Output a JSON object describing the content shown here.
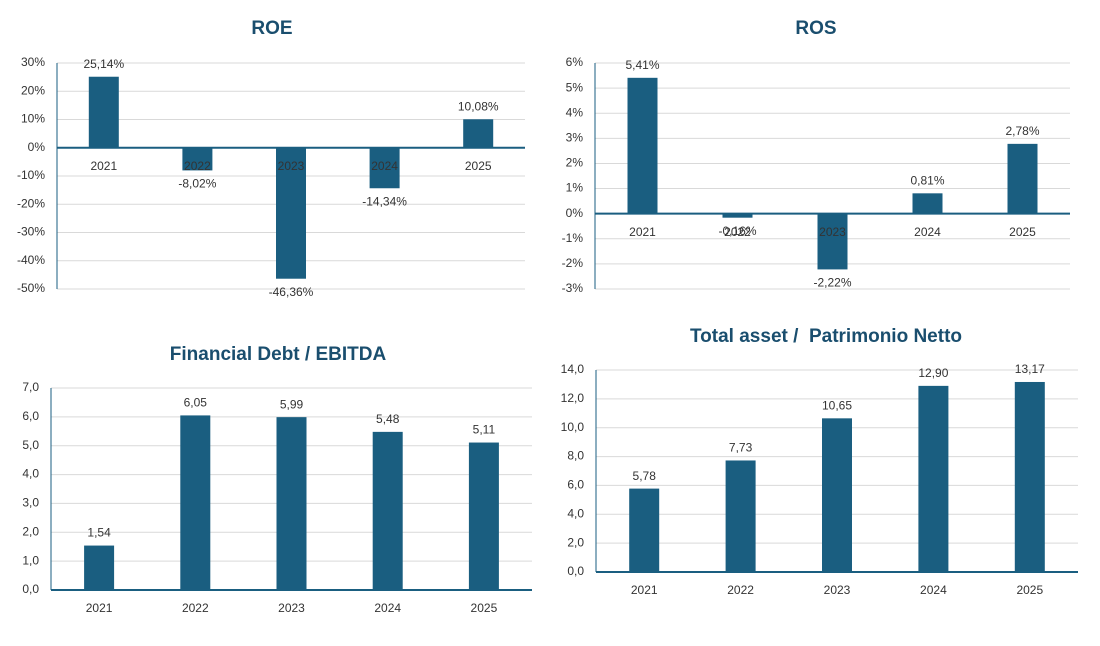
{
  "chart_data": [
    {
      "type": "bar",
      "title": "ROE",
      "categories": [
        "2021",
        "2022",
        "2023",
        "2024",
        "2025"
      ],
      "values": [
        25.14,
        -8.02,
        -46.36,
        -14.34,
        10.08
      ],
      "value_labels": [
        "25,14%",
        "-8,02%",
        "-46,36%",
        "-14,34%",
        "10,08%"
      ],
      "color": "#1a5e80",
      "ylim": [
        -50,
        30
      ],
      "yticks": [
        {
          "value": -50,
          "label": "-50%"
        },
        {
          "value": -40,
          "label": "-40%"
        },
        {
          "value": -30,
          "label": "-30%"
        },
        {
          "value": -20,
          "label": "-20%"
        },
        {
          "value": -10,
          "label": "-10%"
        },
        {
          "value": 0,
          "label": "0%"
        },
        {
          "value": 10,
          "label": "10%"
        },
        {
          "value": 20,
          "label": "20%"
        },
        {
          "value": 30,
          "label": "30%"
        }
      ],
      "grid": true
    },
    {
      "type": "bar",
      "title": "ROS",
      "categories": [
        "2021",
        "2022",
        "2023",
        "2024",
        "2025"
      ],
      "values": [
        5.41,
        -0.16,
        -2.22,
        0.81,
        2.78
      ],
      "value_labels": [
        "5,41%",
        "-0,16%",
        "-2,22%",
        "0,81%",
        "2,78%"
      ],
      "color": "#1a5e80",
      "ylim": [
        -3,
        6
      ],
      "yticks": [
        {
          "value": -3,
          "label": "-3%"
        },
        {
          "value": -2,
          "label": "-2%"
        },
        {
          "value": -1,
          "label": "-1%"
        },
        {
          "value": 0,
          "label": "0%"
        },
        {
          "value": 1,
          "label": "1%"
        },
        {
          "value": 2,
          "label": "2%"
        },
        {
          "value": 3,
          "label": "3%"
        },
        {
          "value": 4,
          "label": "4%"
        },
        {
          "value": 5,
          "label": "5%"
        },
        {
          "value": 6,
          "label": "6%"
        }
      ],
      "grid": true
    },
    {
      "type": "bar",
      "title": "Financial Debt / EBITDA",
      "categories": [
        "2021",
        "2022",
        "2023",
        "2024",
        "2025"
      ],
      "values": [
        1.54,
        6.05,
        5.99,
        5.48,
        5.11
      ],
      "value_labels": [
        "1,54",
        "6,05",
        "5,99",
        "5,48",
        "5,11"
      ],
      "color": "#1a5e80",
      "ylim": [
        0,
        7
      ],
      "yticks": [
        {
          "value": 0,
          "label": "0,0"
        },
        {
          "value": 1,
          "label": "1,0"
        },
        {
          "value": 2,
          "label": "2,0"
        },
        {
          "value": 3,
          "label": "3,0"
        },
        {
          "value": 4,
          "label": "4,0"
        },
        {
          "value": 5,
          "label": "5,0"
        },
        {
          "value": 6,
          "label": "6,0"
        },
        {
          "value": 7,
          "label": "7,0"
        }
      ],
      "grid": true
    },
    {
      "type": "bar",
      "title": "Total asset /  Patrimonio Netto",
      "categories": [
        "2021",
        "2022",
        "2023",
        "2024",
        "2025"
      ],
      "values": [
        5.78,
        7.73,
        10.65,
        12.9,
        13.17
      ],
      "value_labels": [
        "5,78",
        "7,73",
        "10,65",
        "12,90",
        "13,17"
      ],
      "color": "#1a5e80",
      "ylim": [
        0,
        14
      ],
      "yticks": [
        {
          "value": 0,
          "label": "0,0"
        },
        {
          "value": 2,
          "label": "2,0"
        },
        {
          "value": 4,
          "label": "4,0"
        },
        {
          "value": 6,
          "label": "6,0"
        },
        {
          "value": 8,
          "label": "8,0"
        },
        {
          "value": 10,
          "label": "10,0"
        },
        {
          "value": 12,
          "label": "12,0"
        },
        {
          "value": 14,
          "label": "14,0"
        }
      ],
      "grid": true
    }
  ]
}
